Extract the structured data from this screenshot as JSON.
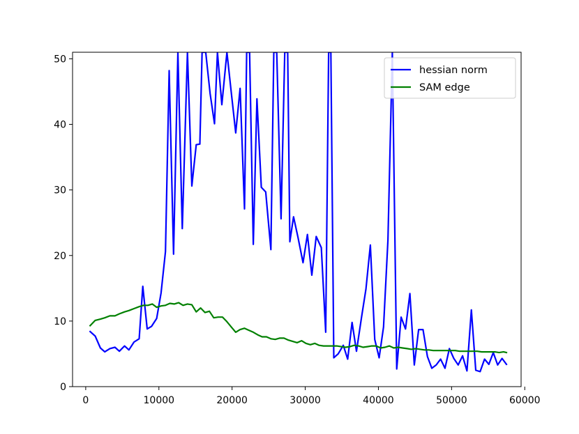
{
  "chart_data": {
    "type": "line",
    "title": "",
    "xlabel": "",
    "ylabel": "",
    "xlim": [
      -1800,
      59500
    ],
    "ylim": [
      0,
      51
    ],
    "grid": false,
    "legend_position": "top-right",
    "x_ticks": [
      0,
      10000,
      20000,
      30000,
      40000,
      50000,
      60000
    ],
    "x_tick_labels": [
      "0",
      "10000",
      "20000",
      "30000",
      "40000",
      "50000",
      "60000"
    ],
    "y_ticks": [
      0,
      10,
      20,
      30,
      40,
      50
    ],
    "y_tick_labels": [
      "0",
      "10",
      "20",
      "30",
      "40",
      "50"
    ],
    "series": [
      {
        "name": "hessian norm",
        "color": "#0000ff",
        "x": [
          600,
          1300,
          2000,
          2600,
          3300,
          4000,
          4600,
          5300,
          5900,
          6600,
          7300,
          7800,
          8400,
          9000,
          9700,
          10300,
          10900,
          11400,
          12000,
          12600,
          13200,
          13900,
          14500,
          15100,
          15600,
          15900,
          16400,
          17000,
          17600,
          18000,
          18600,
          19300,
          19900,
          20500,
          21100,
          21700,
          22000,
          22400,
          22900,
          23400,
          24000,
          24600,
          25300,
          25700,
          26100,
          26700,
          27200,
          27600,
          27900,
          28400,
          29000,
          29700,
          30300,
          30900,
          31500,
          32200,
          32800,
          33200,
          33500,
          33900,
          34500,
          35200,
          35800,
          36400,
          37000,
          37700,
          38300,
          38900,
          39500,
          40100,
          40700,
          41300,
          41900,
          42500,
          43100,
          43700,
          44300,
          44900,
          45500,
          46100,
          46700,
          47300,
          47900,
          48500,
          49100,
          49700,
          50300,
          50900,
          51500,
          52100,
          52700,
          53300,
          53900,
          54500,
          55100,
          55700,
          56300,
          56900,
          57500
        ],
        "y": [
          8.4,
          7.7,
          5.9,
          5.3,
          5.8,
          6.0,
          5.4,
          6.2,
          5.6,
          6.8,
          7.3,
          15.3,
          8.8,
          9.2,
          10.4,
          14.3,
          20.6,
          48.2,
          20.2,
          51,
          24.1,
          51,
          30.6,
          36.9,
          37.0,
          51,
          51,
          44.7,
          40.1,
          51,
          43.0,
          51,
          44.8,
          38.7,
          45.5,
          27.1,
          51,
          51,
          21.7,
          43.9,
          30.4,
          29.7,
          20.9,
          51,
          51,
          25.6,
          51,
          51,
          22.1,
          25.9,
          22.8,
          18.9,
          23.2,
          17.0,
          22.9,
          21.2,
          8.3,
          51,
          51,
          4.4,
          5.0,
          6.3,
          4.2,
          9.8,
          5.4,
          10.6,
          14.9,
          21.6,
          7.2,
          4.4,
          9.1,
          22.3,
          51,
          2.7,
          10.6,
          8.8,
          14.2,
          3.3,
          8.7,
          8.7,
          4.6,
          2.8,
          3.3,
          4.2,
          2.8,
          5.8,
          4.3,
          3.3,
          4.7,
          2.4,
          11.7,
          2.5,
          2.3,
          4.2,
          3.4,
          5.2,
          3.3,
          4.3,
          3.4
        ]
      },
      {
        "name": "SAM edge",
        "color": "#008000",
        "x": [
          600,
          1300,
          2000,
          2600,
          3300,
          4000,
          4600,
          5300,
          5900,
          6600,
          7300,
          7900,
          8500,
          9100,
          9700,
          10300,
          10900,
          11500,
          12100,
          12700,
          13300,
          13900,
          14500,
          15100,
          15700,
          16300,
          16900,
          17500,
          18100,
          18700,
          19300,
          19900,
          20500,
          21100,
          21700,
          22300,
          22900,
          23500,
          24100,
          24700,
          25300,
          25900,
          26500,
          27100,
          27700,
          28300,
          28900,
          29500,
          30100,
          30700,
          31300,
          31900,
          32500,
          33100,
          33700,
          34300,
          34900,
          35500,
          36100,
          36700,
          37300,
          37900,
          38500,
          39100,
          39700,
          40300,
          40900,
          41500,
          42100,
          42700,
          43300,
          43900,
          44500,
          45100,
          45700,
          46300,
          46900,
          47500,
          48100,
          48700,
          49300,
          49900,
          50500,
          51100,
          51700,
          52300,
          52900,
          53500,
          54100,
          54700,
          55300,
          55900,
          56500,
          57100,
          57500
        ],
        "y": [
          9.3,
          10.1,
          10.3,
          10.5,
          10.8,
          10.8,
          11.1,
          11.4,
          11.6,
          11.9,
          12.2,
          12.4,
          12.4,
          12.6,
          12.1,
          12.3,
          12.4,
          12.7,
          12.6,
          12.8,
          12.4,
          12.6,
          12.5,
          11.4,
          12.0,
          11.3,
          11.5,
          10.5,
          10.6,
          10.6,
          9.9,
          9.1,
          8.3,
          8.7,
          8.9,
          8.6,
          8.3,
          7.9,
          7.6,
          7.6,
          7.3,
          7.2,
          7.4,
          7.4,
          7.1,
          6.9,
          6.7,
          7.0,
          6.6,
          6.4,
          6.6,
          6.3,
          6.2,
          6.2,
          6.2,
          6.2,
          6.1,
          6.0,
          6.1,
          6.3,
          6.2,
          6.0,
          6.1,
          6.2,
          6.2,
          5.9,
          6.0,
          6.2,
          5.9,
          6.0,
          5.9,
          5.8,
          5.7,
          5.8,
          5.7,
          5.6,
          5.6,
          5.5,
          5.5,
          5.5,
          5.5,
          5.5,
          5.5,
          5.4,
          5.4,
          5.4,
          5.4,
          5.4,
          5.3,
          5.3,
          5.3,
          5.3,
          5.2,
          5.3,
          5.2
        ]
      }
    ]
  }
}
